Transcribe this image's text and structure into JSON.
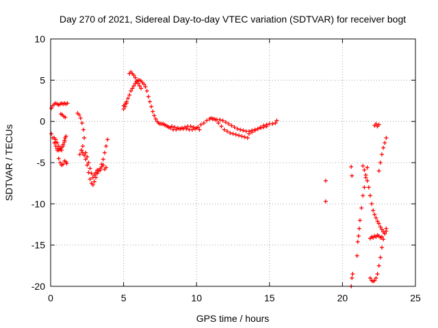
{
  "chart_data": {
    "type": "scatter",
    "title": "Day 270 of 2021, Sidereal Day-to-day VTEC variation (SDTVAR) for receiver bogt",
    "xlabel": "GPS time / hours",
    "ylabel": "SDTVAR / TECUs",
    "xlim": [
      0,
      25
    ],
    "ylim": [
      -20,
      10
    ],
    "xticks": [
      "0",
      "5",
      "10",
      "15",
      "20",
      "25"
    ],
    "yticks": [
      "-20",
      "-15",
      "-10",
      "-5",
      "0",
      "5",
      "10"
    ],
    "grid": true,
    "marker_color": "#ff0000",
    "marker": "plus",
    "series": [
      {
        "name": "SDTVAR",
        "x": [
          0.05,
          0.15,
          0.25,
          0.35,
          0.45,
          0.55,
          0.65,
          0.75,
          0.85,
          0.95,
          1.05,
          1.15,
          0.05,
          0.15,
          0.25,
          0.35,
          0.45,
          0.55,
          0.65,
          0.75,
          0.85,
          0.95,
          1.05,
          0.25,
          0.35,
          0.45,
          0.55,
          0.65,
          0.75,
          0.85,
          0.95,
          1.05,
          1.1,
          0.35,
          0.45,
          0.55,
          0.65,
          0.75,
          0.85,
          0.95,
          1.0,
          0.7,
          0.8,
          0.9,
          1.0,
          1.85,
          1.95,
          2.05,
          2.15,
          2.25,
          2.3,
          2.2,
          2.1,
          2.0,
          2.1,
          2.2,
          2.3,
          2.4,
          2.5,
          2.6,
          2.7,
          2.8,
          2.9,
          3.0,
          3.1,
          3.2,
          3.3,
          3.4,
          3.5,
          3.6,
          3.7,
          3.8,
          3.9,
          2.4,
          2.5,
          2.6,
          2.7,
          2.8,
          2.9,
          3.0,
          3.1,
          3.2,
          3.3,
          3.4,
          3.5,
          3.6,
          3.7,
          3.8,
          5.0,
          5.1,
          5.2,
          5.0,
          5.1,
          5.2,
          5.3,
          5.4,
          5.5,
          5.6,
          5.7,
          5.8,
          5.9,
          6.0,
          6.1,
          6.2,
          6.3,
          6.4,
          6.5,
          6.6,
          6.7,
          5.4,
          5.5,
          5.6,
          5.7,
          5.8,
          5.9,
          6.0,
          6.1,
          6.2,
          6.8,
          6.9,
          7.0,
          7.1,
          7.2,
          7.3,
          7.4,
          7.5,
          7.6,
          7.7,
          7.8,
          7.9,
          8.0,
          8.1,
          8.2,
          8.3,
          8.5,
          8.7,
          8.9,
          9.1,
          9.3,
          9.5,
          9.7,
          9.9,
          10.1,
          10.3,
          8.4,
          8.6,
          8.8,
          9.0,
          9.2,
          9.4,
          9.6,
          9.8,
          10.0,
          10.2,
          10.5,
          10.7,
          10.9,
          11.1,
          11.3,
          11.5,
          11.7,
          11.9,
          12.1,
          12.3,
          12.5,
          12.7,
          12.9,
          13.1,
          13.3,
          13.5,
          11.0,
          11.2,
          11.4,
          11.6,
          11.8,
          12.0,
          12.2,
          12.4,
          12.6,
          12.8,
          13.0,
          13.2,
          13.4,
          13.6,
          13.8,
          14.0,
          14.2,
          14.4,
          14.6,
          14.8,
          13.6,
          13.8,
          14.0,
          14.2,
          14.4,
          14.6,
          14.8,
          15.0,
          15.2,
          15.4,
          15.5,
          18.85,
          18.85,
          20.6,
          20.65,
          20.7,
          20.6,
          20.65,
          21.0,
          21.05,
          21.1,
          21.15,
          21.2,
          21.3,
          21.4,
          21.5,
          21.6,
          21.7,
          21.4,
          21.5,
          21.6,
          21.7,
          21.8,
          21.9,
          22.0,
          22.1,
          22.2,
          22.3,
          22.4,
          22.5,
          22.6,
          22.7,
          22.8,
          22.9,
          23.0,
          21.9,
          22.0,
          22.1,
          22.2,
          22.3,
          22.4,
          22.5,
          22.6,
          22.7,
          22.8,
          22.9,
          23.0,
          21.9,
          22.0,
          22.1,
          22.2,
          22.3,
          22.4,
          22.5,
          22.6,
          22.7,
          22.5,
          22.6,
          22.7,
          22.8,
          22.9,
          23.0,
          22.2,
          22.3,
          22.4,
          22.5
        ],
        "y": [
          1.6,
          1.9,
          2.1,
          2.2,
          2.1,
          2.0,
          2.1,
          2.2,
          2.1,
          2.2,
          2.1,
          2.2,
          -1.5,
          -2.0,
          -2.6,
          -3.0,
          -3.3,
          -3.5,
          -3.4,
          -3.2,
          -2.8,
          -2.3,
          -1.8,
          -2.0,
          -2.5,
          -3.5,
          -4.5,
          -5.0,
          -5.3,
          -5.2,
          -4.8,
          -4.9,
          -5.1,
          -2.2,
          -2.6,
          -3.0,
          -3.3,
          -3.5,
          -3.0,
          -2.5,
          -2.0,
          0.9,
          0.8,
          0.6,
          0.5,
          1.0,
          0.8,
          0.4,
          -0.2,
          -1.0,
          -2.0,
          -3.0,
          -3.5,
          -4.0,
          -3.5,
          -3.8,
          -4.1,
          -4.6,
          -5.3,
          -6.2,
          -7.0,
          -7.5,
          -7.7,
          -7.3,
          -6.8,
          -6.3,
          -6.0,
          -5.7,
          -5.2,
          -4.6,
          -3.8,
          -3.0,
          -2.2,
          -3.8,
          -4.3,
          -5.0,
          -5.7,
          -6.3,
          -6.8,
          -6.5,
          -6.2,
          -5.9,
          -6.0,
          -5.9,
          -5.5,
          -5.3,
          -5.8,
          -5.6,
          1.5,
          1.8,
          2.2,
          1.9,
          2.1,
          2.4,
          2.8,
          3.2,
          3.7,
          4.0,
          4.3,
          4.6,
          4.8,
          5.0,
          5.0,
          4.9,
          4.7,
          4.5,
          4.2,
          3.7,
          3.0,
          5.8,
          6.0,
          5.8,
          5.6,
          5.3,
          4.9,
          4.6,
          4.3,
          4.0,
          2.4,
          1.8,
          1.2,
          0.7,
          0.3,
          0.0,
          -0.2,
          -0.3,
          -0.3,
          -0.3,
          -0.4,
          -0.5,
          -0.6,
          -0.7,
          -0.8,
          -0.6,
          -0.7,
          -0.8,
          -0.9,
          -0.9,
          -0.9,
          -1.0,
          -1.0,
          -0.9,
          -0.7,
          -0.4,
          -1.0,
          -1.0,
          -0.9,
          -0.8,
          -0.7,
          -0.6,
          -0.6,
          -0.7,
          -0.8,
          -1.0,
          -0.2,
          0.1,
          0.3,
          0.3,
          0.2,
          -0.2,
          -0.6,
          -1.0,
          -1.2,
          -1.4,
          -1.5,
          -1.6,
          -1.7,
          -1.8,
          -1.9,
          -2.0,
          0.4,
          0.3,
          0.2,
          0.2,
          0.1,
          -0.1,
          -0.3,
          -0.5,
          -0.7,
          -0.9,
          -1.0,
          -1.1,
          -1.2,
          -1.2,
          -1.1,
          -1.0,
          -0.9,
          -0.8,
          -0.7,
          -0.6,
          -1.5,
          -1.3,
          -1.1,
          -0.9,
          -0.7,
          -0.5,
          -0.4,
          -0.3,
          -0.3,
          -0.2,
          0.1,
          -7.2,
          -9.7,
          -20.0,
          -19.0,
          -18.5,
          -5.5,
          -6.6,
          -16.3,
          -14.6,
          -13.9,
          -13.0,
          -12.0,
          -10.5,
          -9.0,
          -8.0,
          -6.8,
          -5.6,
          -5.4,
          -5.9,
          -6.5,
          -7.2,
          -8.0,
          -9.0,
          -10.0,
          -10.8,
          -11.3,
          -11.7,
          -12.1,
          -12.4,
          -12.8,
          -13.1,
          -13.4,
          -13.6,
          -13.3,
          -19.0,
          -19.3,
          -19.4,
          -19.3,
          -19.0,
          -18.5,
          -17.5,
          -16.5,
          -15.3,
          -14.3,
          -13.6,
          -13.0,
          -14.2,
          -14.0,
          -14.1,
          -13.9,
          -14.0,
          -13.8,
          -13.9,
          -14.1,
          -14.0,
          -6.0,
          -5.0,
          -4.0,
          -3.2,
          -2.6,
          -2.0,
          -0.5,
          -0.3,
          -0.6,
          -0.4
        ]
      }
    ]
  }
}
